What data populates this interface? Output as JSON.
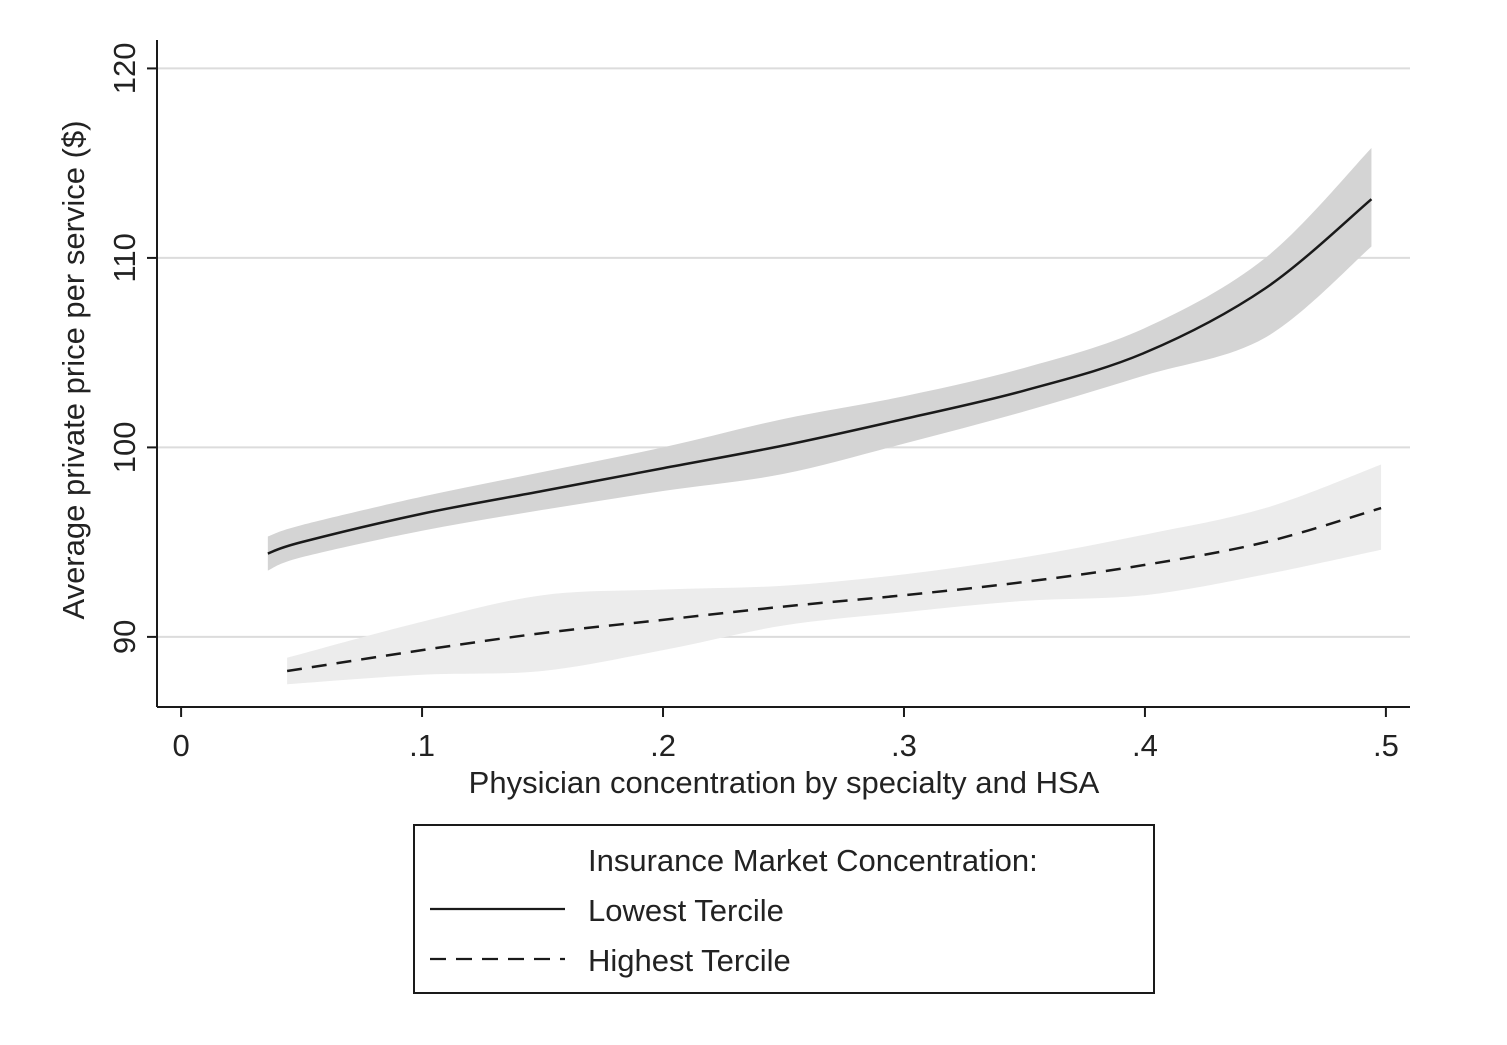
{
  "chart_data": {
    "type": "line",
    "title": "",
    "xlabel": "Physician concentration by specialty and HSA",
    "ylabel": "Average private price per service ($)",
    "xlim": [
      -0.01,
      0.51
    ],
    "ylim": [
      86.3,
      121.5
    ],
    "x_ticks": [
      0,
      0.1,
      0.2,
      0.3,
      0.4,
      0.5
    ],
    "x_tick_labels": [
      "0",
      ".1",
      ".2",
      ".3",
      ".4",
      ".5"
    ],
    "y_ticks": [
      90,
      100,
      110,
      120
    ],
    "y_tick_labels": [
      "90",
      "100",
      "110",
      "120"
    ],
    "grid": "horizontal",
    "legend": {
      "title": "Insurance Market Concentration:",
      "position": "bottom"
    },
    "series": [
      {
        "name": "Lowest Tercile",
        "line_style": "solid",
        "line_color": "#1a1a1a",
        "band_color": "#d4d4d4",
        "x": [
          0.036,
          0.05,
          0.1,
          0.15,
          0.2,
          0.25,
          0.3,
          0.35,
          0.4,
          0.45,
          0.494
        ],
        "y": [
          94.4,
          95.0,
          96.5,
          97.7,
          98.9,
          100.1,
          101.5,
          103.0,
          105.0,
          108.4,
          113.1
        ],
        "lower": [
          93.5,
          94.2,
          95.6,
          96.7,
          97.7,
          98.6,
          100.2,
          101.9,
          103.8,
          105.8,
          110.6
        ],
        "upper": [
          95.3,
          95.9,
          97.4,
          98.7,
          100.0,
          101.5,
          102.7,
          104.2,
          106.3,
          110.0,
          115.8
        ]
      },
      {
        "name": "Highest Tercile",
        "line_style": "dashed",
        "line_color": "#1a1a1a",
        "band_color": "#ececec",
        "x": [
          0.044,
          0.1,
          0.15,
          0.2,
          0.25,
          0.3,
          0.35,
          0.4,
          0.45,
          0.498
        ],
        "y": [
          88.2,
          89.3,
          90.2,
          90.9,
          91.6,
          92.2,
          92.9,
          93.8,
          95.0,
          96.8
        ],
        "lower": [
          87.5,
          88.0,
          88.2,
          89.3,
          90.6,
          91.3,
          91.9,
          92.2,
          93.3,
          94.6
        ],
        "upper": [
          88.9,
          90.8,
          92.2,
          92.5,
          92.7,
          93.3,
          94.2,
          95.4,
          96.8,
          99.1
        ]
      }
    ]
  }
}
